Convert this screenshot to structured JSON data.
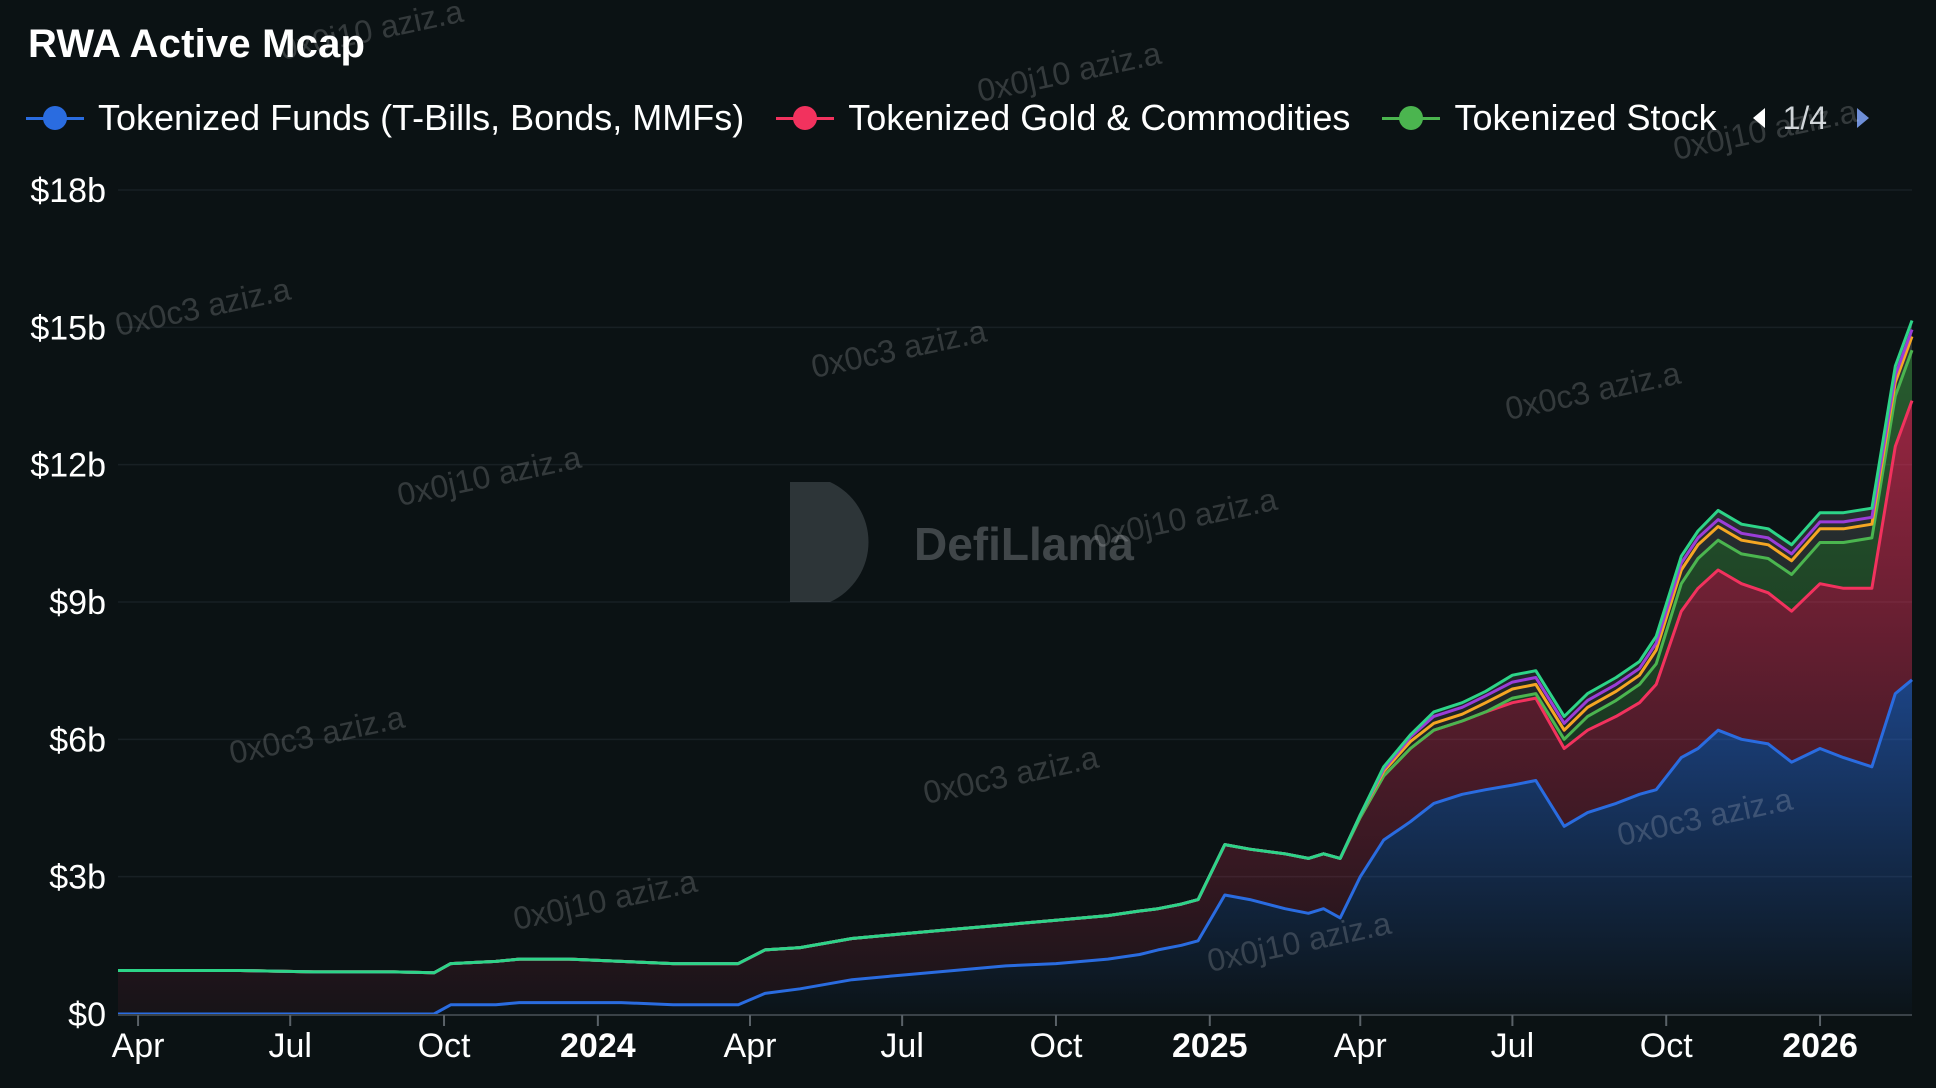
{
  "title": "RWA Active Mcap",
  "legend": {
    "items": [
      {
        "label": "Tokenized Funds (T-Bills, Bonds, MMFs)",
        "color": "#2a6ce0"
      },
      {
        "label": "Tokenized Gold & Commodities",
        "color": "#f2325e"
      },
      {
        "label": "Tokenized Stock",
        "color": "#4bb54f"
      }
    ],
    "page": "1/4"
  },
  "watermarks": [
    "0x0c3 aziz.a",
    "0x0j10 aziz.a"
  ],
  "logo_text": "DefiLlama",
  "chart_data": {
    "type": "area",
    "title": "RWA Active Mcap",
    "xlabel": "",
    "ylabel": "",
    "stacked": true,
    "x_range": [
      "2023-03-20",
      "2026-02-25"
    ],
    "ylim": [
      0,
      18
    ],
    "y_unit": "$ billions",
    "y_ticks": [
      "$0",
      "$3b",
      "$6b",
      "$9b",
      "$12b",
      "$15b",
      "$18b"
    ],
    "x_ticks": [
      {
        "date": "2023-04-01",
        "label": "Apr"
      },
      {
        "date": "2023-07-01",
        "label": "Jul"
      },
      {
        "date": "2023-10-01",
        "label": "Oct"
      },
      {
        "date": "2024-01-01",
        "label": "2024",
        "bold": true
      },
      {
        "date": "2024-04-01",
        "label": "Apr"
      },
      {
        "date": "2024-07-01",
        "label": "Jul"
      },
      {
        "date": "2024-10-01",
        "label": "Oct"
      },
      {
        "date": "2025-01-01",
        "label": "2025",
        "bold": true
      },
      {
        "date": "2025-04-01",
        "label": "Apr"
      },
      {
        "date": "2025-07-01",
        "label": "Jul"
      },
      {
        "date": "2025-10-01",
        "label": "Oct"
      },
      {
        "date": "2026-01-01",
        "label": "2026",
        "bold": true
      }
    ],
    "grid": true,
    "legend_position": "top",
    "dates": [
      "2023-03-20",
      "2023-04-15",
      "2023-06-01",
      "2023-07-15",
      "2023-09-01",
      "2023-09-25",
      "2023-10-05",
      "2023-11-01",
      "2023-11-15",
      "2023-12-01",
      "2023-12-15",
      "2024-01-15",
      "2024-02-15",
      "2024-03-15",
      "2024-03-25",
      "2024-04-10",
      "2024-05-01",
      "2024-06-01",
      "2024-07-01",
      "2024-08-01",
      "2024-09-01",
      "2024-10-01",
      "2024-11-01",
      "2024-11-20",
      "2024-12-01",
      "2024-12-15",
      "2024-12-25",
      "2025-01-10",
      "2025-01-25",
      "2025-02-15",
      "2025-03-01",
      "2025-03-10",
      "2025-03-20",
      "2025-04-01",
      "2025-04-15",
      "2025-05-01",
      "2025-05-15",
      "2025-06-01",
      "2025-06-15",
      "2025-07-01",
      "2025-07-15",
      "2025-08-01",
      "2025-08-15",
      "2025-09-01",
      "2025-09-15",
      "2025-09-25",
      "2025-10-10",
      "2025-10-20",
      "2025-11-01",
      "2025-11-15",
      "2025-12-01",
      "2025-12-15",
      "2026-01-01",
      "2026-01-15",
      "2026-02-01",
      "2026-02-15",
      "2026-02-25"
    ],
    "series": [
      {
        "name": "Tokenized Funds (T-Bills, Bonds, MMFs)",
        "color": "#2a6ce0",
        "values": [
          0.0,
          0.0,
          0.0,
          0.0,
          0.0,
          0.0,
          0.2,
          0.2,
          0.25,
          0.25,
          0.25,
          0.25,
          0.2,
          0.2,
          0.2,
          0.45,
          0.55,
          0.75,
          0.85,
          0.95,
          1.05,
          1.1,
          1.2,
          1.3,
          1.4,
          1.5,
          1.6,
          2.6,
          2.5,
          2.3,
          2.2,
          2.3,
          2.1,
          3.0,
          3.8,
          4.2,
          4.6,
          4.8,
          4.9,
          5.0,
          5.1,
          4.1,
          4.4,
          4.6,
          4.8,
          4.9,
          5.6,
          5.8,
          6.2,
          6.0,
          5.9,
          5.5,
          5.8,
          5.6,
          5.4,
          7.0,
          7.3
        ]
      },
      {
        "name": "Tokenized Gold & Commodities",
        "color": "#f2325e",
        "values": [
          0.95,
          0.95,
          0.95,
          0.92,
          0.92,
          0.9,
          0.9,
          0.95,
          0.95,
          0.95,
          0.95,
          0.9,
          0.9,
          0.9,
          0.9,
          0.95,
          0.9,
          0.9,
          0.9,
          0.9,
          0.9,
          0.95,
          0.95,
          0.95,
          0.9,
          0.9,
          0.9,
          1.1,
          1.1,
          1.2,
          1.2,
          1.2,
          1.3,
          1.3,
          1.4,
          1.6,
          1.6,
          1.6,
          1.7,
          1.8,
          1.8,
          1.7,
          1.8,
          1.9,
          2.0,
          2.3,
          3.2,
          3.5,
          3.5,
          3.4,
          3.3,
          3.3,
          3.6,
          3.7,
          3.9,
          5.4,
          6.1
        ]
      },
      {
        "name": "Tokenized Stock",
        "color": "#4bb54f",
        "values": [
          0.0,
          0.0,
          0.0,
          0.0,
          0.0,
          0.0,
          0.0,
          0.0,
          0.0,
          0.0,
          0.0,
          0.0,
          0.0,
          0.0,
          0.0,
          0.0,
          0.0,
          0.0,
          0.0,
          0.0,
          0.0,
          0.0,
          0.0,
          0.0,
          0.0,
          0.0,
          0.0,
          0.0,
          0.0,
          0.0,
          0.0,
          0.0,
          0.0,
          0.0,
          0.0,
          0.0,
          0.0,
          0.0,
          0.0,
          0.1,
          0.1,
          0.2,
          0.3,
          0.35,
          0.4,
          0.45,
          0.6,
          0.65,
          0.65,
          0.65,
          0.75,
          0.8,
          0.9,
          1.0,
          1.1,
          1.1,
          1.1
        ]
      },
      {
        "name": "",
        "color": "#f5a623",
        "values": [
          0.0,
          0.0,
          0.0,
          0.0,
          0.0,
          0.0,
          0.0,
          0.0,
          0.0,
          0.0,
          0.0,
          0.0,
          0.0,
          0.0,
          0.0,
          0.0,
          0.0,
          0.0,
          0.0,
          0.0,
          0.0,
          0.0,
          0.0,
          0.0,
          0.0,
          0.0,
          0.0,
          0.0,
          0.0,
          0.0,
          0.0,
          0.0,
          0.0,
          0.05,
          0.1,
          0.15,
          0.15,
          0.15,
          0.2,
          0.2,
          0.2,
          0.2,
          0.2,
          0.2,
          0.2,
          0.3,
          0.3,
          0.3,
          0.3,
          0.3,
          0.3,
          0.3,
          0.3,
          0.3,
          0.3,
          0.3,
          0.3
        ]
      },
      {
        "name": "",
        "color": "#9b3dd8",
        "values": [
          0.0,
          0.0,
          0.0,
          0.0,
          0.0,
          0.0,
          0.0,
          0.0,
          0.0,
          0.0,
          0.0,
          0.0,
          0.0,
          0.0,
          0.0,
          0.0,
          0.0,
          0.0,
          0.0,
          0.0,
          0.0,
          0.0,
          0.0,
          0.0,
          0.0,
          0.0,
          0.0,
          0.0,
          0.0,
          0.0,
          0.0,
          0.0,
          0.0,
          0.0,
          0.05,
          0.1,
          0.15,
          0.15,
          0.15,
          0.15,
          0.15,
          0.15,
          0.15,
          0.15,
          0.15,
          0.15,
          0.15,
          0.15,
          0.15,
          0.15,
          0.15,
          0.15,
          0.15,
          0.15,
          0.15,
          0.15,
          0.15
        ]
      },
      {
        "name": "",
        "color": "#2dd488",
        "values": [
          0.0,
          0.0,
          0.0,
          0.0,
          0.0,
          0.0,
          0.0,
          0.0,
          0.0,
          0.0,
          0.0,
          0.0,
          0.0,
          0.0,
          0.0,
          0.0,
          0.0,
          0.0,
          0.0,
          0.0,
          0.0,
          0.0,
          0.0,
          0.0,
          0.0,
          0.0,
          0.0,
          0.0,
          0.0,
          0.0,
          0.0,
          0.0,
          0.0,
          0.0,
          0.05,
          0.05,
          0.1,
          0.1,
          0.1,
          0.15,
          0.15,
          0.15,
          0.15,
          0.15,
          0.15,
          0.15,
          0.15,
          0.15,
          0.2,
          0.2,
          0.2,
          0.2,
          0.2,
          0.2,
          0.2,
          0.2,
          0.2
        ]
      }
    ]
  }
}
